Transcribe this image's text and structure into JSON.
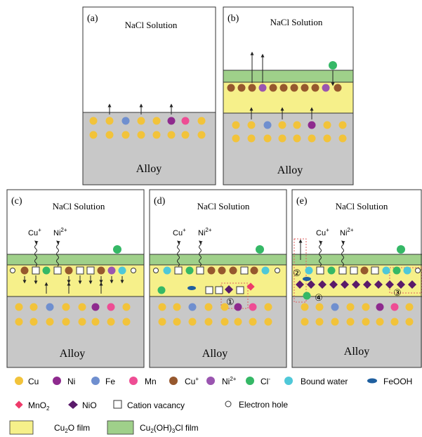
{
  "panels": [
    {
      "id": "a",
      "letter": "(a)",
      "solution": "NaCl Solution",
      "alloy": "Alloy"
    },
    {
      "id": "b",
      "letter": "(b)",
      "solution": "NaCl Solution",
      "alloy": "Alloy"
    },
    {
      "id": "c",
      "letter": "(c)",
      "solution": "NaCl Solution",
      "alloy": "Alloy",
      "ion1": "Cu",
      "ion1_sup": "+",
      "ion2": "Ni",
      "ion2_sup": "2+"
    },
    {
      "id": "d",
      "letter": "(d)",
      "solution": "NaCl Solution",
      "alloy": "Alloy",
      "ion1": "Cu",
      "ion1_sup": "+",
      "ion2": "Ni",
      "ion2_sup": "2+",
      "markers": [
        "①"
      ]
    },
    {
      "id": "e",
      "letter": "(e)",
      "solution": "NaCl Solution",
      "alloy": "Alloy",
      "ion1": "Cu",
      "ion1_sup": "+",
      "ion2": "Ni",
      "ion2_sup": "2+",
      "markers": [
        "②",
        "③",
        "④"
      ]
    }
  ],
  "legend": {
    "row1": [
      {
        "label": "Cu"
      },
      {
        "label": "Ni"
      },
      {
        "label": "Fe"
      },
      {
        "label": "Mn"
      },
      {
        "label": "Cu",
        "sup": "+"
      },
      {
        "label": "Ni",
        "sup": "2+"
      },
      {
        "label": "Cl",
        "sup": "-"
      },
      {
        "label": "Bound water"
      },
      {
        "label": "FeOOH"
      }
    ],
    "row2": [
      {
        "label": "MnO",
        "sub": "2"
      },
      {
        "label": "NiO"
      },
      {
        "label": "Cation vacancy"
      },
      {
        "label": "Electron hole"
      }
    ],
    "row3": [
      {
        "label": "Cu",
        "sub": "2",
        "rest": "O film"
      },
      {
        "label": "Cu",
        "sub": "2",
        "rest": "(OH)",
        "sub2": "3",
        "rest2": "Cl film"
      }
    ]
  },
  "colors": {
    "cu": "#f2c33a",
    "ni": "#8e2a8e",
    "fe": "#6f8fcf",
    "mn": "#ee4d94",
    "cu_plus": "#96582e",
    "ni2_plus": "#9a55b0",
    "cl": "#35b866",
    "water": "#4fc8d8",
    "feooh": "#1f5f9f",
    "mno2": "#ee3a6a",
    "nio": "#5a1a6a",
    "alloy": "#c8c8c8",
    "cu2o": "#f6f08a",
    "cu2ohcl": "#9fd08a",
    "box": "#e06060"
  }
}
